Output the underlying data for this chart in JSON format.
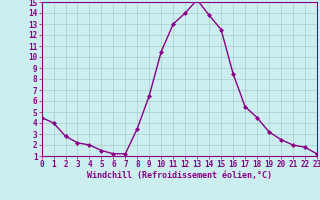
{
  "x": [
    0,
    1,
    2,
    3,
    4,
    5,
    6,
    7,
    8,
    9,
    10,
    11,
    12,
    13,
    14,
    15,
    16,
    17,
    18,
    19,
    20,
    21,
    22,
    23
  ],
  "y": [
    4.5,
    4.0,
    2.8,
    2.2,
    2.0,
    1.5,
    1.2,
    1.2,
    3.5,
    6.5,
    10.5,
    13.0,
    14.0,
    15.2,
    13.8,
    12.5,
    8.5,
    5.5,
    4.5,
    3.2,
    2.5,
    2.0,
    1.8,
    1.2
  ],
  "line_color": "#880088",
  "marker": "D",
  "marker_size": 2.0,
  "bg_color": "#cceeee",
  "grid_color": "#aacccc",
  "xlabel": "Windchill (Refroidissement éolien,°C)",
  "xlim": [
    0,
    23
  ],
  "ylim": [
    1,
    15
  ],
  "yticks": [
    1,
    2,
    3,
    4,
    5,
    6,
    7,
    8,
    9,
    10,
    11,
    12,
    13,
    14,
    15
  ],
  "xticks": [
    0,
    1,
    2,
    3,
    4,
    5,
    6,
    7,
    8,
    9,
    10,
    11,
    12,
    13,
    14,
    15,
    16,
    17,
    18,
    19,
    20,
    21,
    22,
    23
  ],
  "tick_color": "#880088",
  "axis_color": "#880088",
  "xlabel_color": "#880088",
  "line_width": 1.0,
  "font_family": "monospace"
}
